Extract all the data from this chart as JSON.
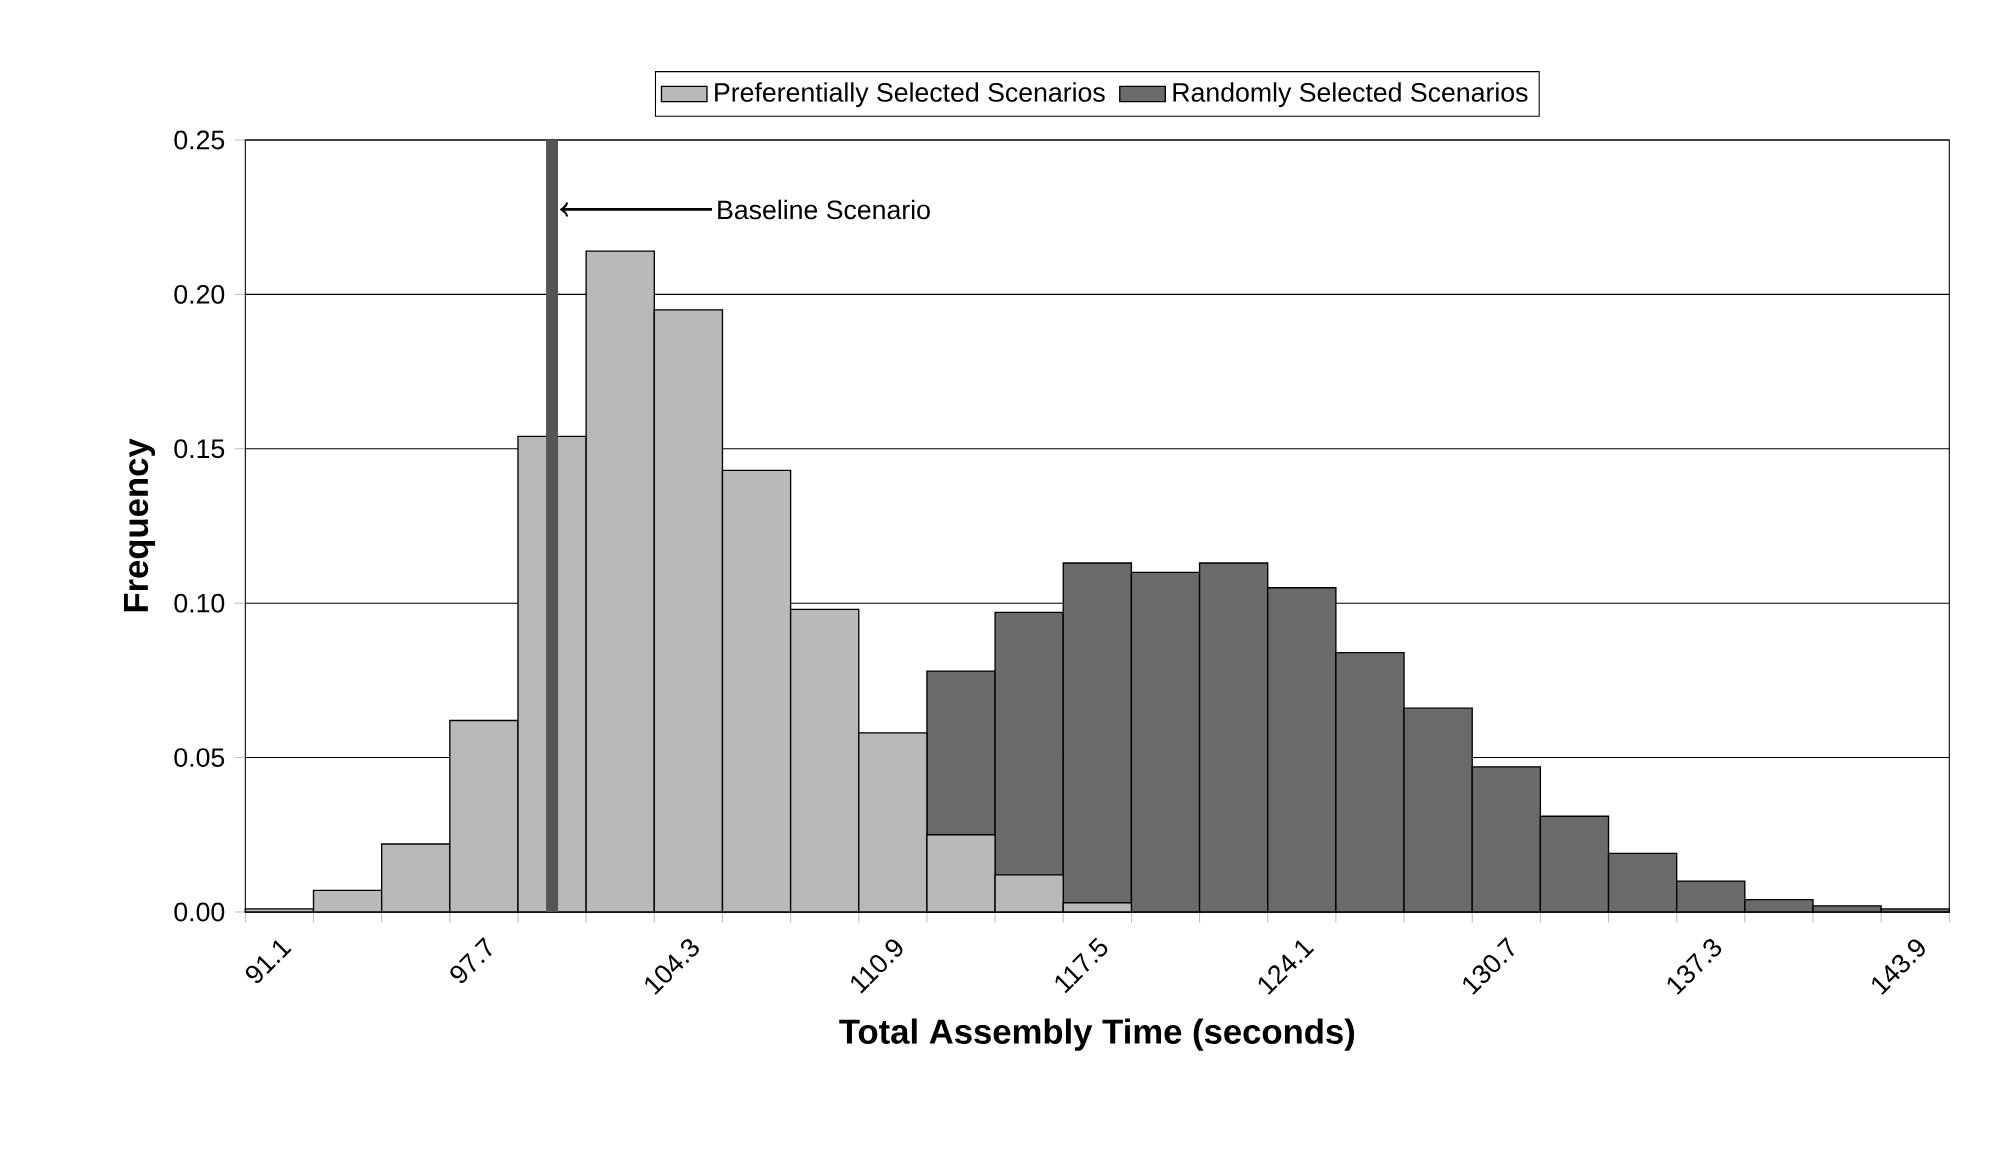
{
  "chart_data": {
    "type": "bar",
    "xlabel": "Total Assembly Time (seconds)",
    "ylabel": "Frequency",
    "x": [
      91.1,
      93.3,
      95.5,
      97.7,
      99.9,
      102.1,
      104.3,
      106.5,
      108.7,
      110.9,
      113.1,
      115.3,
      117.5,
      119.7,
      121.9,
      124.1,
      126.3,
      128.5,
      130.7,
      132.9,
      135.1,
      137.3,
      139.5,
      141.7,
      143.9
    ],
    "series": [
      {
        "name": "Preferentially Selected Scenarios",
        "color": "#b9b9b9",
        "values": [
          0.001,
          0.007,
          0.022,
          0.062,
          0.154,
          0.214,
          0.195,
          0.143,
          0.098,
          0.058,
          0.025,
          0.012,
          0.003,
          null,
          null,
          null,
          null,
          null,
          null,
          null,
          null,
          null,
          null,
          null,
          null
        ]
      },
      {
        "name": "Randomly Selected Scenarios",
        "color": "#6b6b6b",
        "values": [
          null,
          null,
          null,
          null,
          null,
          null,
          null,
          null,
          null,
          null,
          0.078,
          0.097,
          0.113,
          0.11,
          0.113,
          0.105,
          0.084,
          0.066,
          0.047,
          0.031,
          0.019,
          0.01,
          0.004,
          0.002,
          0.001
        ]
      }
    ],
    "xlim": [
      90.0,
      145.0
    ],
    "xticks": [
      91.1,
      97.7,
      104.3,
      110.9,
      117.5,
      124.1,
      130.7,
      137.3,
      143.9
    ],
    "ylim": [
      0,
      0.25
    ],
    "yticks": [
      {
        "value": 0,
        "label": "0.00"
      },
      {
        "value": 0.05,
        "label": "0.05"
      },
      {
        "value": 0.1,
        "label": "0.10"
      },
      {
        "value": 0.15,
        "label": "0.15"
      },
      {
        "value": 0.2,
        "label": "0.20"
      },
      {
        "value": 0.25,
        "label": "0.25"
      }
    ],
    "ref_lines": [
      {
        "axis": "x",
        "value": 99.9,
        "label": "Baseline Scenario",
        "color": "#555555"
      }
    ],
    "grid": "y",
    "legend": "top"
  }
}
